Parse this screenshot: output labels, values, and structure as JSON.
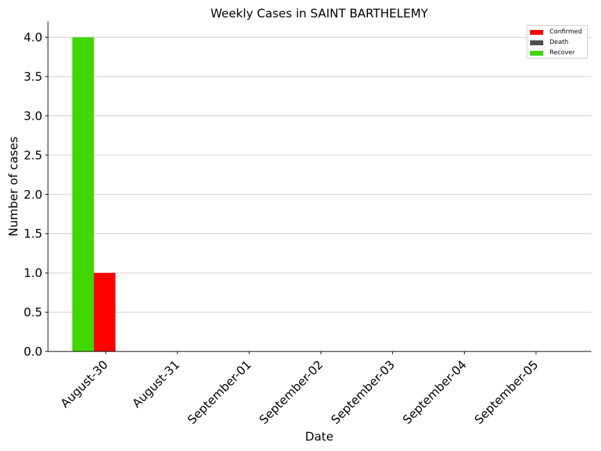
{
  "chart_data": {
    "type": "bar",
    "title": "Weekly Cases in SAINT BARTHELEMY",
    "xlabel": "Date",
    "ylabel": "Number of cases",
    "categories": [
      "August-30",
      "August-31",
      "September-01",
      "September-02",
      "September-03",
      "September-04",
      "September-05"
    ],
    "yticks": [
      "0.0",
      "0.5",
      "1.0",
      "1.5",
      "2.0",
      "2.5",
      "3.0",
      "3.5",
      "4.0"
    ],
    "ylim": [
      0,
      4.2
    ],
    "grid": "horizontal",
    "legend_position": "top-right",
    "series": [
      {
        "name": "Recover",
        "color": "#3fd800",
        "values": [
          4,
          0,
          0,
          0,
          0,
          0,
          0
        ]
      },
      {
        "name": "Confirmed",
        "color": "#ff0000",
        "values": [
          1,
          0,
          0,
          0,
          0,
          0,
          0
        ]
      },
      {
        "name": "Death",
        "color": "#4d4d4d",
        "values": [
          0,
          0,
          0,
          0,
          0,
          0,
          0
        ]
      }
    ],
    "legend": [
      {
        "label": "Confirmed",
        "color": "#ff0000"
      },
      {
        "label": "Death",
        "color": "#4d4d4d"
      },
      {
        "label": "Recover",
        "color": "#3fd800"
      }
    ]
  }
}
